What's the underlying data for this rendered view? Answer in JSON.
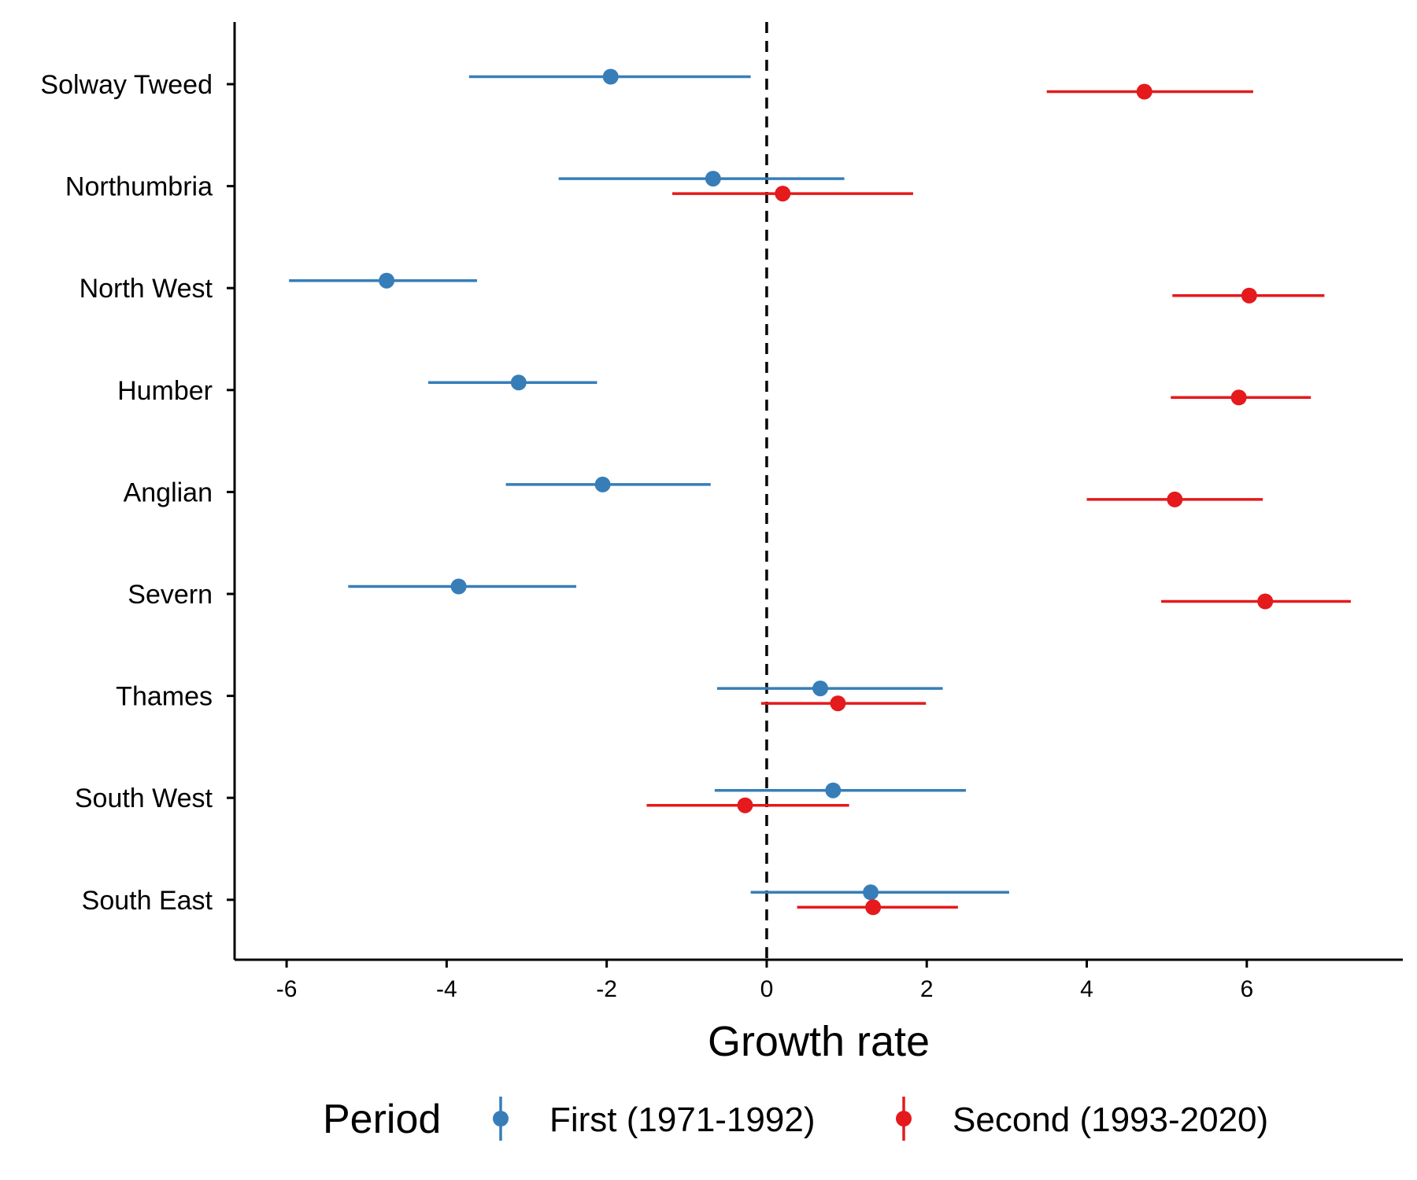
{
  "chart_data": {
    "type": "scatter",
    "title": "",
    "xlabel": "Growth rate",
    "ylabel": "",
    "xlim": [
      -6.65,
      7.95
    ],
    "xticks": [
      "-6",
      "-4",
      "-2",
      "0",
      "2",
      "4",
      "6"
    ],
    "xtick_values": [
      -6,
      -4,
      -2,
      0,
      2,
      4,
      6
    ],
    "reference_line": {
      "x": 0,
      "style": "dashed"
    },
    "grid": false,
    "categories": [
      "Solway Tweed",
      "Northumbria",
      "North West",
      "Humber",
      "Anglian",
      "Severn",
      "Thames",
      "South West",
      "South East"
    ],
    "legend": {
      "title": "Period",
      "placement": "bottom"
    },
    "series": [
      {
        "name": "First (1971-1992)",
        "color": "#377EB8",
        "estimate": [
          -1.95,
          -0.67,
          -4.75,
          -3.1,
          -2.05,
          -3.85,
          0.67,
          0.83,
          1.3
        ],
        "lower": [
          -3.72,
          -2.6,
          -5.97,
          -4.23,
          -3.26,
          -5.23,
          -0.62,
          -0.65,
          -0.2
        ],
        "upper": [
          -0.2,
          0.97,
          -3.62,
          -2.12,
          -0.7,
          -2.38,
          2.2,
          2.49,
          3.03
        ]
      },
      {
        "name": "Second (1993-2020)",
        "color": "#E41A1C",
        "estimate": [
          4.72,
          0.2,
          6.03,
          5.9,
          5.1,
          6.23,
          0.89,
          -0.27,
          1.33
        ],
        "lower": [
          3.5,
          -1.18,
          5.07,
          5.05,
          4.0,
          4.93,
          -0.07,
          -1.5,
          0.38
        ],
        "upper": [
          6.08,
          1.83,
          6.97,
          6.8,
          6.2,
          7.3,
          1.99,
          1.03,
          2.39
        ]
      }
    ]
  }
}
